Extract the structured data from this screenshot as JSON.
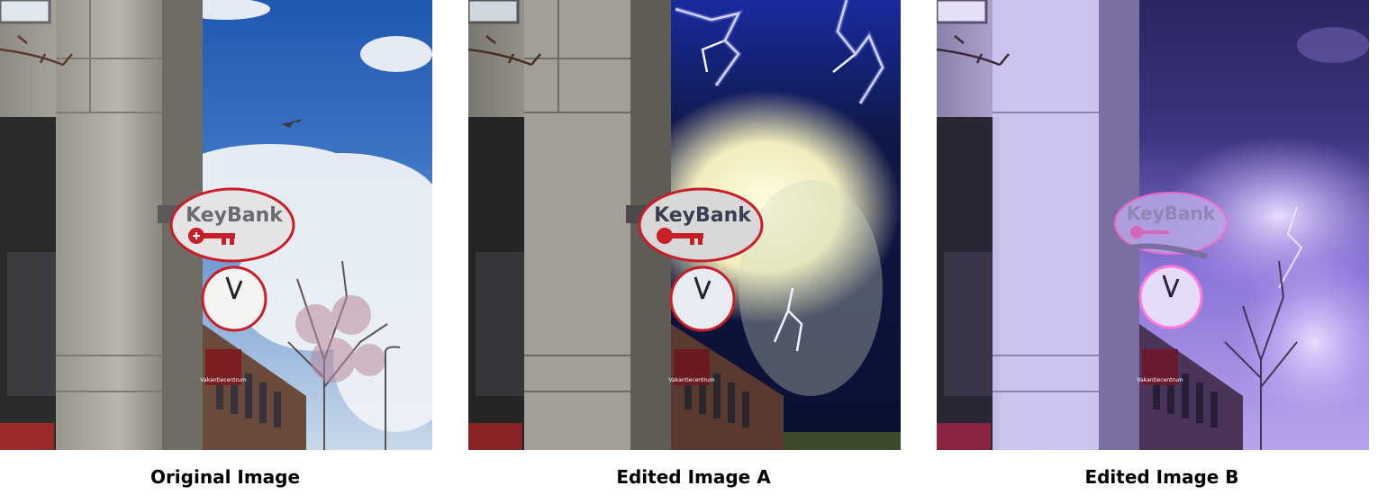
{
  "panels": [
    {
      "caption": "Original Image",
      "sign_text": "KeyBank",
      "storefront_text": "Vakantiecentrum",
      "variant": "original"
    },
    {
      "caption": "Edited Image A",
      "sign_text": "KeyBank",
      "storefront_text": "Vakantiecentrum",
      "variant": "lightning"
    },
    {
      "caption": "Edited Image B",
      "sign_text": "KeyBank",
      "storefront_text": "Vakantiecentrum",
      "variant": "purple-storm"
    }
  ],
  "colors": {
    "sky_blue": "#2a62b8",
    "storm_dark": "#161c3c",
    "purple_tint": "#7a5ad6",
    "key_red": "#c81e28",
    "concrete": "#b4b0a8"
  }
}
